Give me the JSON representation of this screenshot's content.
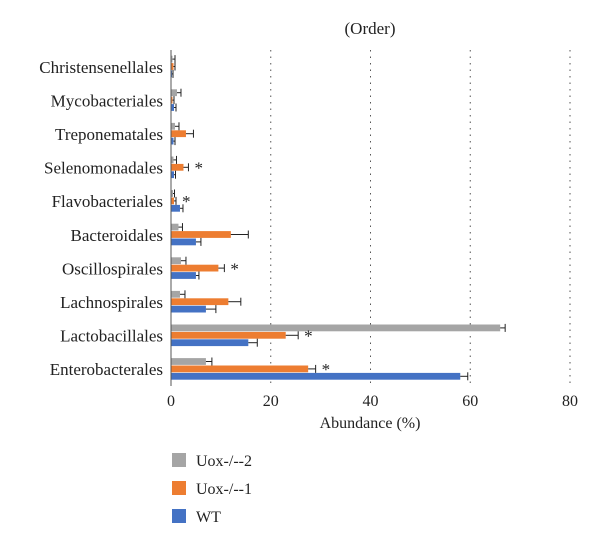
{
  "chart_data": {
    "type": "bar",
    "orientation": "horizontal",
    "title": "(Order)",
    "xlabel": "Abundance (%)",
    "ylabel": "",
    "xlim": [
      0,
      80
    ],
    "xticks": [
      "0",
      "20",
      "40",
      "60",
      "80"
    ],
    "categories": [
      "Christensenellales",
      "Mycobacteriales",
      "Treponematales",
      "Selenomonadales",
      "Flavobacteriales",
      "Bacteroidales",
      "Oscillospirales",
      "Lachnospirales",
      "Lactobacillales",
      "Enterobacterales"
    ],
    "series": [
      {
        "name": "Uox-/--2",
        "color": "#a5a5a5",
        "values": [
          0.3,
          1.2,
          0.8,
          0.5,
          0.4,
          1.5,
          2.0,
          1.8,
          66.0,
          7.0
        ],
        "errors": [
          0.5,
          0.8,
          0.8,
          0.6,
          0.3,
          0.8,
          1.0,
          1.0,
          1.0,
          1.2
        ]
      },
      {
        "name": "Uox-/--1",
        "color": "#ed7d31",
        "values": [
          0.5,
          0.3,
          3.0,
          2.5,
          0.6,
          12.0,
          9.5,
          11.5,
          23.0,
          27.5
        ],
        "errors": [
          0.3,
          0.3,
          1.5,
          1.0,
          0.4,
          3.5,
          1.2,
          2.5,
          2.5,
          1.5
        ]
      },
      {
        "name": "WT",
        "color": "#4472c4",
        "values": [
          0.2,
          0.6,
          0.5,
          0.6,
          1.8,
          5.0,
          5.0,
          7.0,
          15.5,
          58.0
        ],
        "errors": [
          0.2,
          0.4,
          0.3,
          0.3,
          0.6,
          1.0,
          0.6,
          2.0,
          1.8,
          1.5
        ]
      }
    ],
    "significance": [
      "",
      "",
      "",
      "*",
      "*",
      "",
      "*",
      "",
      "*",
      "*"
    ],
    "gridlines": "vertical-dotted",
    "legend_placement": "bottom-left"
  },
  "legend": [
    "Uox-/--2",
    "Uox-/--1",
    "WT"
  ]
}
